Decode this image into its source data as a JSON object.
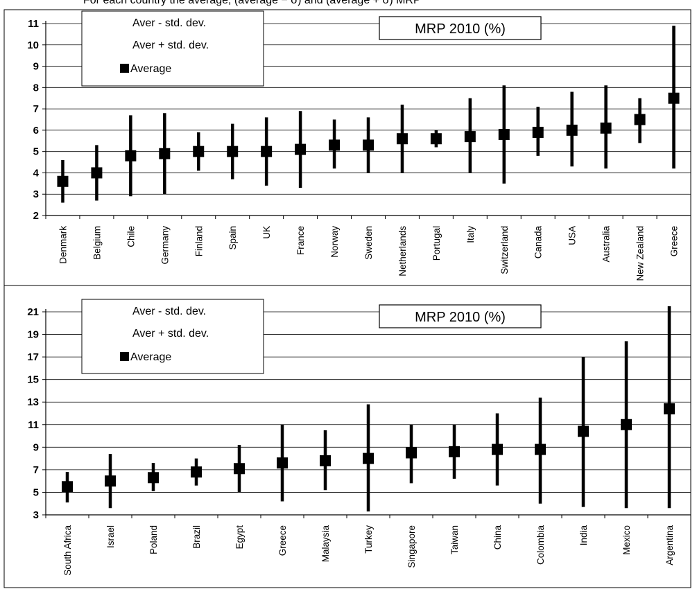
{
  "header": {
    "caption": "For each country the average, (average − σ) and (average + σ) MRP"
  },
  "chart_data": [
    {
      "type": "range",
      "title": "MRP 2010 (%)",
      "legend": [
        "Aver - std. dev.",
        "Aver + std. dev.",
        "Average"
      ],
      "ylim": [
        2,
        11
      ],
      "yticks": [
        2,
        3,
        4,
        5,
        6,
        7,
        8,
        9,
        10,
        11
      ],
      "categories": [
        "Denmark",
        "Belgium",
        "Chile",
        "Germany",
        "Finland",
        "Spain",
        "UK",
        "France",
        "Norway",
        "Sweden",
        "Netherlands",
        "Portugal",
        "Italy",
        "Switzerland",
        "Canada",
        "USA",
        "Australia",
        "New Zealand",
        "Greece"
      ],
      "series": [
        {
          "name": "Aver - std. dev.",
          "values": [
            2.6,
            2.7,
            2.9,
            3.0,
            4.1,
            3.7,
            3.4,
            3.3,
            4.2,
            4.0,
            4.0,
            5.2,
            4.0,
            3.5,
            4.8,
            4.3,
            4.2,
            5.4,
            4.2
          ]
        },
        {
          "name": "Aver + std. dev.",
          "values": [
            4.6,
            5.3,
            6.7,
            6.8,
            5.9,
            6.3,
            6.6,
            6.9,
            6.5,
            6.6,
            7.2,
            6.0,
            7.5,
            8.1,
            7.1,
            7.8,
            8.1,
            7.5,
            10.9
          ]
        },
        {
          "name": "Average",
          "values": [
            3.6,
            4.0,
            4.8,
            4.9,
            5.0,
            5.0,
            5.0,
            5.1,
            5.3,
            5.3,
            5.6,
            5.6,
            5.7,
            5.8,
            5.9,
            6.0,
            6.1,
            6.5,
            7.5
          ]
        }
      ],
      "grid": true
    },
    {
      "type": "range",
      "title": "MRP 2010 (%)",
      "legend": [
        "Aver - std. dev.",
        "Aver + std. dev.",
        "Average"
      ],
      "ylim": [
        3,
        21
      ],
      "yticks": [
        3,
        5,
        7,
        9,
        11,
        13,
        15,
        17,
        19,
        21
      ],
      "categories": [
        "South Africa",
        "Israel",
        "Poland",
        "Brazil",
        "Egypt",
        "Greece",
        "Malaysia",
        "Turkey",
        "Singapore",
        "Taiwan",
        "China",
        "Colombia",
        "India",
        "Mexico",
        "Argentina"
      ],
      "series": [
        {
          "name": "Aver - std. dev.",
          "values": [
            4.1,
            3.6,
            5.1,
            5.6,
            5.0,
            4.2,
            5.2,
            3.3,
            5.8,
            6.2,
            5.6,
            4.0,
            3.7,
            3.6,
            3.6
          ]
        },
        {
          "name": "Aver + std. dev.",
          "values": [
            6.8,
            8.4,
            7.6,
            8.0,
            9.2,
            11.0,
            10.5,
            12.8,
            11.0,
            11.0,
            12.0,
            13.4,
            17.0,
            18.4,
            21.5
          ]
        },
        {
          "name": "Average",
          "values": [
            5.5,
            6.0,
            6.3,
            6.8,
            7.1,
            7.6,
            7.8,
            8.0,
            8.5,
            8.6,
            8.8,
            8.8,
            10.4,
            11.0,
            12.4
          ]
        }
      ],
      "grid": true
    }
  ]
}
